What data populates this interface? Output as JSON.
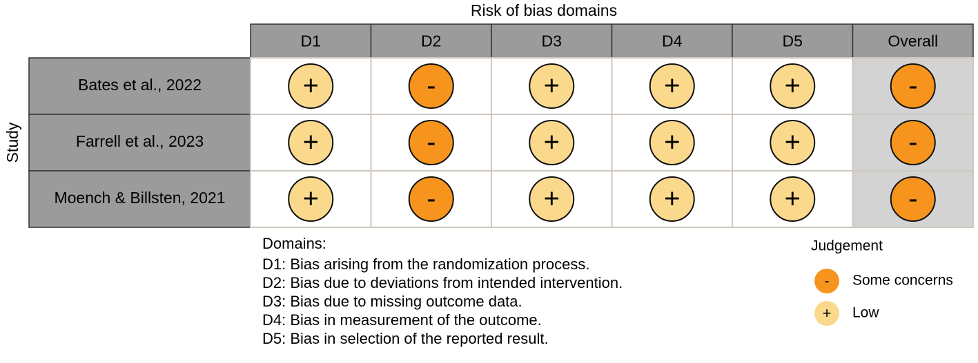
{
  "title": "Risk of bias domains",
  "y_label": "Study",
  "columns": [
    "D1",
    "D2",
    "D3",
    "D4",
    "D5",
    "Overall"
  ],
  "rows": [
    {
      "study": "Bates et al., 2022",
      "judgements": [
        "+",
        "-",
        "+",
        "+",
        "+",
        "-"
      ]
    },
    {
      "study": "Farrell et al., 2023",
      "judgements": [
        "+",
        "-",
        "+",
        "+",
        "+",
        "-"
      ]
    },
    {
      "study": "Moench & Billsten, 2021",
      "judgements": [
        "+",
        "-",
        "+",
        "+",
        "+",
        "-"
      ]
    }
  ],
  "domains": {
    "heading": "Domains:",
    "items": [
      "D1: Bias arising from the randomization process.",
      "D2: Bias due to deviations from intended intervention.",
      "D3: Bias due to missing outcome data.",
      "D4: Bias in measurement of the outcome.",
      "D5: Bias in selection of the reported result."
    ]
  },
  "legend": {
    "title": "Judgement",
    "items": [
      {
        "symbol": "-",
        "label": "Some concerns",
        "color": "#f7941d"
      },
      {
        "symbol": "+",
        "label": "Low",
        "color": "#fad98d"
      }
    ]
  }
}
